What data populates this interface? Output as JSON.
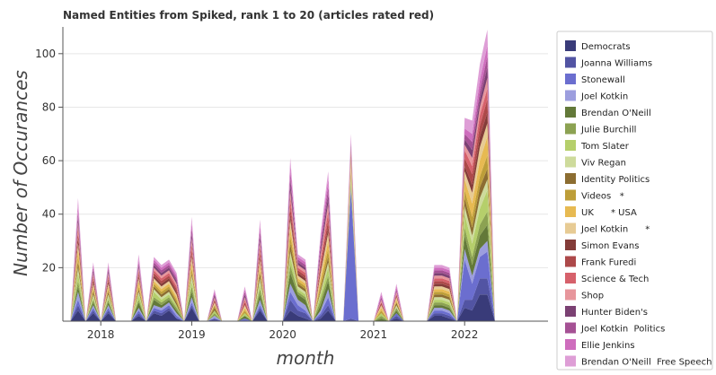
{
  "chart_data": {
    "type": "area",
    "stacked": true,
    "title": "Named Entities from Spiked, rank 1 to 20 (articles rated red)",
    "xlabel": "month",
    "ylabel": "Number of Occurances",
    "ylim": [
      0,
      110
    ],
    "yticks": [
      20,
      40,
      60,
      80,
      100
    ],
    "xlim": [
      "2017-08",
      "2022-12"
    ],
    "xticks": [
      {
        "label": "2018",
        "value": "2018-01"
      },
      {
        "label": "2019",
        "value": "2019-01"
      },
      {
        "label": "2020",
        "value": "2020-01"
      },
      {
        "label": "2021",
        "value": "2021-01"
      },
      {
        "label": "2022",
        "value": "2022-01"
      }
    ],
    "grid": true,
    "legend_position": "right",
    "months": [
      "2017-09",
      "2017-10",
      "2017-11",
      "2017-12",
      "2018-01",
      "2018-02",
      "2018-03",
      "2018-04",
      "2018-05",
      "2018-06",
      "2018-07",
      "2018-08",
      "2018-09",
      "2018-10",
      "2018-11",
      "2018-12",
      "2019-01",
      "2019-02",
      "2019-03",
      "2019-04",
      "2019-05",
      "2019-06",
      "2019-07",
      "2019-08",
      "2019-09",
      "2019-10",
      "2019-11",
      "2019-12",
      "2020-01",
      "2020-02",
      "2020-03",
      "2020-04",
      "2020-05",
      "2020-06",
      "2020-07",
      "2020-08",
      "2020-09",
      "2020-10",
      "2020-11",
      "2020-12",
      "2021-01",
      "2021-02",
      "2021-03",
      "2021-04",
      "2021-05",
      "2021-06",
      "2021-07",
      "2021-08",
      "2021-09",
      "2021-10",
      "2021-11",
      "2021-12",
      "2022-01",
      "2022-02",
      "2022-03",
      "2022-04",
      "2022-05"
    ],
    "series": [
      {
        "name": "Democrats",
        "color": "#393b79",
        "values": [
          0,
          4,
          0,
          3,
          0,
          3,
          0,
          0,
          0,
          2,
          0,
          3,
          2,
          4,
          1,
          0,
          5,
          0,
          0,
          0,
          0,
          0,
          0,
          0,
          0,
          4,
          0,
          0,
          0,
          4,
          2,
          1,
          0,
          1,
          4,
          0,
          0,
          0,
          0,
          0,
          0,
          0,
          0,
          1,
          0,
          0,
          0,
          0,
          2,
          2,
          1,
          0,
          5,
          4,
          10,
          10,
          0
        ]
      },
      {
        "name": "Joanna Williams",
        "color": "#5254a3",
        "values": [
          0,
          2,
          0,
          1,
          0,
          1,
          0,
          0,
          0,
          1,
          0,
          1,
          1,
          1,
          0,
          0,
          1,
          0,
          0,
          1,
          0,
          0,
          0,
          0,
          0,
          1,
          0,
          0,
          0,
          4,
          2,
          2,
          0,
          1,
          2,
          0,
          0,
          1,
          0,
          0,
          0,
          0,
          0,
          1,
          0,
          0,
          0,
          0,
          1,
          1,
          1,
          0,
          3,
          4,
          6,
          6,
          0
        ]
      },
      {
        "name": "Stonewall",
        "color": "#6b6ecf",
        "values": [
          0,
          2,
          0,
          1,
          0,
          1,
          0,
          0,
          0,
          1,
          0,
          1,
          1,
          1,
          1,
          0,
          1,
          0,
          0,
          0,
          0,
          0,
          0,
          1,
          0,
          1,
          0,
          0,
          0,
          3,
          2,
          1,
          0,
          1,
          3,
          0,
          0,
          48,
          0,
          0,
          0,
          0,
          0,
          1,
          0,
          0,
          0,
          0,
          1,
          1,
          1,
          0,
          15,
          6,
          8,
          10,
          0
        ]
      },
      {
        "name": "Joel Kotkin",
        "color": "#9c9ede",
        "values": [
          0,
          3,
          0,
          1,
          0,
          1,
          0,
          0,
          0,
          1,
          0,
          1,
          1,
          1,
          1,
          0,
          2,
          0,
          0,
          1,
          0,
          0,
          0,
          0,
          0,
          2,
          0,
          0,
          0,
          3,
          2,
          2,
          0,
          1,
          3,
          0,
          0,
          1,
          0,
          0,
          0,
          0,
          0,
          0,
          0,
          0,
          0,
          0,
          1,
          1,
          1,
          0,
          4,
          3,
          3,
          4,
          0
        ]
      },
      {
        "name": "Brendan O'Neill",
        "color": "#637939",
        "values": [
          0,
          2,
          0,
          1,
          0,
          1,
          0,
          0,
          0,
          2,
          0,
          2,
          1,
          1,
          1,
          0,
          2,
          0,
          0,
          0,
          0,
          0,
          0,
          1,
          0,
          2,
          0,
          0,
          0,
          4,
          2,
          2,
          0,
          2,
          3,
          0,
          0,
          1,
          0,
          0,
          0,
          1,
          0,
          1,
          0,
          0,
          0,
          0,
          1,
          1,
          1,
          0,
          5,
          4,
          5,
          6,
          0
        ]
      },
      {
        "name": "Julie Burchill",
        "color": "#8ca252",
        "values": [
          0,
          2,
          0,
          1,
          0,
          1,
          0,
          0,
          0,
          1,
          0,
          1,
          1,
          1,
          1,
          0,
          2,
          0,
          0,
          1,
          0,
          0,
          0,
          0,
          0,
          2,
          0,
          0,
          0,
          3,
          1,
          1,
          0,
          2,
          2,
          0,
          0,
          1,
          0,
          0,
          0,
          1,
          0,
          1,
          0,
          0,
          0,
          0,
          1,
          1,
          1,
          0,
          3,
          3,
          4,
          5,
          0
        ]
      },
      {
        "name": "Tom Slater",
        "color": "#b5cf6b",
        "values": [
          0,
          3,
          0,
          1,
          0,
          1,
          0,
          0,
          0,
          2,
          0,
          2,
          1,
          1,
          1,
          0,
          2,
          0,
          0,
          1,
          0,
          0,
          0,
          1,
          0,
          2,
          0,
          0,
          0,
          3,
          1,
          1,
          0,
          2,
          3,
          0,
          0,
          1,
          0,
          0,
          0,
          1,
          0,
          0,
          0,
          0,
          0,
          0,
          1,
          1,
          1,
          0,
          5,
          5,
          6,
          8,
          0
        ]
      },
      {
        "name": "Viv Regan",
        "color": "#cedb9c",
        "values": [
          0,
          2,
          0,
          1,
          0,
          1,
          0,
          0,
          0,
          1,
          0,
          1,
          1,
          1,
          0,
          0,
          2,
          0,
          0,
          0,
          0,
          0,
          0,
          0,
          0,
          2,
          0,
          0,
          0,
          2,
          1,
          1,
          0,
          1,
          2,
          0,
          0,
          1,
          0,
          0,
          0,
          0,
          0,
          1,
          0,
          0,
          0,
          0,
          1,
          1,
          1,
          0,
          3,
          3,
          4,
          4,
          0
        ]
      },
      {
        "name": "Identity Politics",
        "color": "#8c6d31",
        "values": [
          0,
          2,
          0,
          1,
          0,
          1,
          0,
          0,
          0,
          1,
          0,
          1,
          1,
          1,
          1,
          0,
          1,
          0,
          0,
          1,
          0,
          0,
          0,
          0,
          0,
          2,
          0,
          0,
          0,
          3,
          1,
          1,
          0,
          1,
          2,
          0,
          0,
          1,
          0,
          0,
          0,
          0,
          0,
          1,
          0,
          0,
          0,
          0,
          1,
          1,
          1,
          0,
          3,
          3,
          4,
          4,
          0
        ]
      },
      {
        "name": "Videos   *",
        "color": "#bd9e39",
        "values": [
          0,
          2,
          0,
          1,
          0,
          1,
          0,
          0,
          0,
          1,
          0,
          1,
          1,
          1,
          1,
          0,
          2,
          0,
          0,
          1,
          0,
          0,
          0,
          1,
          0,
          1,
          0,
          0,
          0,
          3,
          1,
          1,
          0,
          2,
          3,
          0,
          0,
          1,
          0,
          0,
          0,
          1,
          0,
          0,
          0,
          0,
          0,
          0,
          1,
          1,
          1,
          0,
          3,
          4,
          4,
          5,
          0
        ]
      },
      {
        "name": "UK      * USA",
        "color": "#e7ba52",
        "values": [
          0,
          3,
          0,
          1,
          0,
          1,
          0,
          0,
          0,
          2,
          0,
          1,
          1,
          1,
          1,
          0,
          2,
          0,
          0,
          0,
          0,
          0,
          0,
          1,
          0,
          2,
          0,
          0,
          0,
          3,
          1,
          1,
          0,
          2,
          3,
          0,
          0,
          1,
          0,
          0,
          0,
          1,
          0,
          1,
          0,
          0,
          0,
          0,
          1,
          1,
          1,
          0,
          4,
          5,
          6,
          7,
          0
        ]
      },
      {
        "name": "Joel Kotkin      *",
        "color": "#e7cb94",
        "values": [
          0,
          2,
          0,
          1,
          0,
          1,
          0,
          0,
          0,
          1,
          0,
          1,
          1,
          1,
          1,
          0,
          2,
          0,
          0,
          1,
          0,
          0,
          0,
          1,
          0,
          2,
          0,
          0,
          0,
          3,
          1,
          1,
          0,
          2,
          3,
          0,
          0,
          4,
          0,
          0,
          0,
          1,
          0,
          1,
          0,
          0,
          0,
          0,
          1,
          1,
          1,
          0,
          3,
          4,
          5,
          5,
          0
        ]
      },
      {
        "name": "Simon Evans",
        "color": "#843c39",
        "values": [
          0,
          2,
          0,
          1,
          0,
          1,
          0,
          0,
          0,
          1,
          0,
          1,
          1,
          1,
          1,
          0,
          1,
          0,
          0,
          0,
          0,
          0,
          0,
          0,
          0,
          1,
          0,
          0,
          0,
          2,
          1,
          1,
          0,
          1,
          2,
          0,
          0,
          1,
          0,
          0,
          0,
          0,
          0,
          0,
          0,
          0,
          0,
          0,
          1,
          1,
          1,
          0,
          2,
          3,
          4,
          4,
          0
        ]
      },
      {
        "name": "Frank Furedi",
        "color": "#ad494a",
        "values": [
          0,
          2,
          0,
          1,
          0,
          1,
          0,
          0,
          0,
          1,
          0,
          1,
          1,
          1,
          1,
          0,
          2,
          0,
          0,
          1,
          0,
          0,
          0,
          1,
          0,
          2,
          0,
          0,
          0,
          3,
          1,
          1,
          0,
          2,
          3,
          0,
          0,
          1,
          0,
          0,
          0,
          1,
          0,
          1,
          0,
          0,
          0,
          0,
          1,
          1,
          1,
          0,
          3,
          4,
          4,
          5,
          0
        ]
      },
      {
        "name": "Science & Tech",
        "color": "#d6616b",
        "values": [
          0,
          2,
          0,
          1,
          0,
          1,
          0,
          0,
          0,
          1,
          0,
          1,
          1,
          1,
          1,
          0,
          2,
          0,
          0,
          0,
          0,
          0,
          0,
          1,
          0,
          2,
          0,
          0,
          0,
          3,
          1,
          1,
          0,
          2,
          3,
          0,
          0,
          1,
          0,
          0,
          0,
          0,
          0,
          0,
          0,
          0,
          0,
          0,
          1,
          1,
          1,
          0,
          3,
          3,
          4,
          4,
          0
        ]
      },
      {
        "name": "Shop",
        "color": "#e7969c",
        "values": [
          0,
          2,
          0,
          1,
          0,
          1,
          0,
          0,
          0,
          1,
          0,
          1,
          1,
          1,
          1,
          0,
          2,
          0,
          0,
          1,
          0,
          0,
          0,
          1,
          0,
          2,
          0,
          0,
          0,
          3,
          1,
          1,
          0,
          2,
          3,
          0,
          0,
          1,
          0,
          0,
          0,
          1,
          0,
          1,
          0,
          0,
          0,
          0,
          1,
          1,
          1,
          0,
          2,
          3,
          3,
          4,
          0
        ]
      },
      {
        "name": "Hunter Biden's",
        "color": "#7b4173",
        "values": [
          0,
          2,
          0,
          1,
          0,
          1,
          0,
          0,
          0,
          1,
          0,
          1,
          1,
          1,
          1,
          0,
          2,
          0,
          0,
          1,
          0,
          0,
          0,
          1,
          0,
          2,
          0,
          0,
          0,
          3,
          1,
          1,
          0,
          2,
          3,
          0,
          0,
          1,
          0,
          0,
          0,
          0,
          0,
          0,
          0,
          0,
          0,
          0,
          1,
          1,
          1,
          0,
          2,
          3,
          3,
          4,
          0
        ]
      },
      {
        "name": "Joel Kotkin  Politics",
        "color": "#a55194",
        "values": [
          0,
          2,
          0,
          1,
          0,
          1,
          0,
          0,
          0,
          1,
          0,
          1,
          1,
          1,
          1,
          0,
          2,
          0,
          0,
          0,
          0,
          0,
          0,
          1,
          0,
          2,
          0,
          0,
          0,
          3,
          1,
          1,
          0,
          2,
          3,
          0,
          0,
          1,
          0,
          0,
          0,
          1,
          0,
          1,
          0,
          0,
          0,
          0,
          1,
          1,
          1,
          0,
          2,
          3,
          3,
          4,
          0
        ]
      },
      {
        "name": "Ellie Jenkins",
        "color": "#ce6dbd",
        "values": [
          0,
          2,
          0,
          1,
          0,
          1,
          0,
          0,
          0,
          1,
          0,
          1,
          1,
          1,
          1,
          0,
          2,
          0,
          0,
          1,
          0,
          0,
          0,
          1,
          0,
          2,
          0,
          0,
          0,
          3,
          1,
          1,
          0,
          2,
          3,
          0,
          0,
          1,
          0,
          0,
          0,
          1,
          0,
          1,
          0,
          0,
          0,
          0,
          1,
          1,
          1,
          0,
          2,
          3,
          4,
          4,
          0
        ]
      },
      {
        "name": "Brendan O'Neill  Free Speech",
        "color": "#de9ed6",
        "values": [
          0,
          3,
          0,
          1,
          0,
          1,
          0,
          0,
          0,
          2,
          0,
          1,
          1,
          1,
          1,
          0,
          2,
          0,
          0,
          1,
          0,
          0,
          0,
          1,
          0,
          2,
          0,
          0,
          0,
          3,
          1,
          1,
          0,
          2,
          3,
          0,
          0,
          2,
          0,
          0,
          0,
          1,
          0,
          1,
          0,
          0,
          0,
          0,
          1,
          1,
          1,
          0,
          4,
          5,
          6,
          6,
          0
        ]
      }
    ]
  }
}
